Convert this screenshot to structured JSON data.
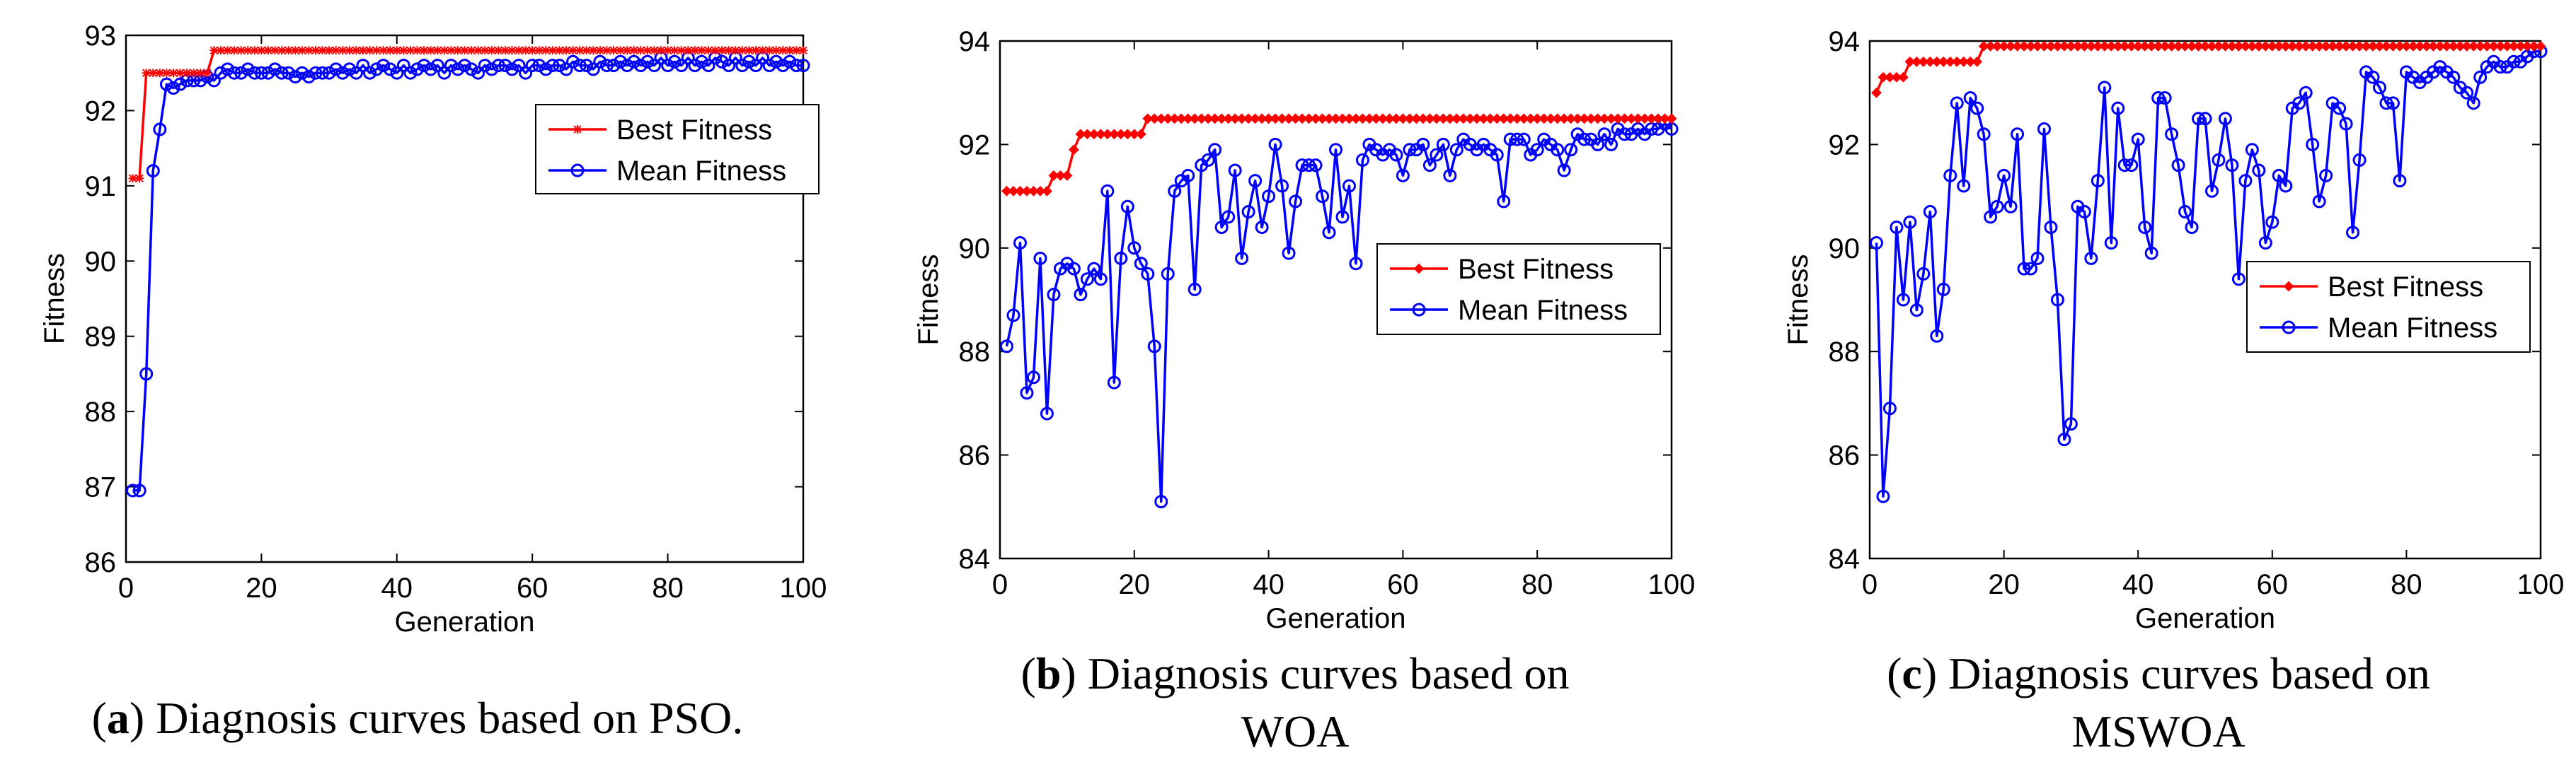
{
  "figure": {
    "panels": [
      {
        "letter": "a",
        "caption_line1": "Diagnosis curves based on PSO.",
        "caption_line2": ""
      },
      {
        "letter": "b",
        "caption_line1": "Diagnosis curves based on",
        "caption_line2": "WOA"
      },
      {
        "letter": "c",
        "caption_line1": "Diagnosis curves based on",
        "caption_line2": "MSWOA"
      }
    ]
  },
  "colors": {
    "best": "#ff0000",
    "mean": "#0000ff",
    "axis": "#000000"
  },
  "chart_data": [
    {
      "type": "line",
      "panel": "a",
      "title": "",
      "xlabel": "Generation",
      "ylabel": "Fitness",
      "xlim": [
        0,
        100
      ],
      "ylim": [
        86,
        93
      ],
      "xticks": [
        0,
        20,
        40,
        60,
        80,
        100
      ],
      "yticks": [
        86,
        87,
        88,
        89,
        90,
        91,
        92,
        93
      ],
      "legend_position": "top-right",
      "series": [
        {
          "name": "Best Fitness",
          "marker": "asterisk",
          "values": [
            91.1,
            91.1,
            92.5,
            92.5,
            92.5,
            92.5,
            92.5,
            92.5,
            92.5,
            92.5,
            92.5,
            92.5,
            92.8,
            92.8,
            92.8,
            92.8,
            92.8,
            92.8,
            92.8,
            92.8,
            92.8,
            92.8,
            92.8,
            92.8,
            92.8,
            92.8,
            92.8,
            92.8,
            92.8,
            92.8,
            92.8,
            92.8,
            92.8,
            92.8,
            92.8,
            92.8,
            92.8,
            92.8,
            92.8,
            92.8,
            92.8,
            92.8,
            92.8,
            92.8,
            92.8,
            92.8,
            92.8,
            92.8,
            92.8,
            92.8,
            92.8,
            92.8,
            92.8,
            92.8,
            92.8,
            92.8,
            92.8,
            92.8,
            92.8,
            92.8,
            92.8,
            92.8,
            92.8,
            92.8,
            92.8,
            92.8,
            92.8,
            92.8,
            92.8,
            92.8,
            92.8,
            92.8,
            92.8,
            92.8,
            92.8,
            92.8,
            92.8,
            92.8,
            92.8,
            92.8,
            92.8,
            92.8,
            92.8,
            92.8,
            92.8,
            92.8,
            92.8,
            92.8,
            92.8,
            92.8,
            92.8,
            92.8,
            92.8,
            92.8,
            92.8,
            92.8,
            92.8,
            92.8,
            92.8,
            92.8
          ]
        },
        {
          "name": "Mean Fitness",
          "marker": "circle",
          "values": [
            86.95,
            86.95,
            88.5,
            91.2,
            91.75,
            92.35,
            92.3,
            92.35,
            92.4,
            92.4,
            92.4,
            92.45,
            92.4,
            92.5,
            92.55,
            92.5,
            92.5,
            92.55,
            92.5,
            92.5,
            92.5,
            92.55,
            92.5,
            92.5,
            92.45,
            92.5,
            92.45,
            92.5,
            92.5,
            92.5,
            92.55,
            92.5,
            92.55,
            92.5,
            92.6,
            92.5,
            92.55,
            92.6,
            92.55,
            92.5,
            92.6,
            92.5,
            92.55,
            92.6,
            92.55,
            92.6,
            92.5,
            92.6,
            92.55,
            92.6,
            92.55,
            92.5,
            92.6,
            92.55,
            92.6,
            92.6,
            92.55,
            92.6,
            92.5,
            92.6,
            92.6,
            92.55,
            92.6,
            92.6,
            92.55,
            92.65,
            92.6,
            92.6,
            92.55,
            92.65,
            92.6,
            92.6,
            92.65,
            92.6,
            92.65,
            92.6,
            92.65,
            92.6,
            92.7,
            92.6,
            92.65,
            92.6,
            92.7,
            92.6,
            92.65,
            92.6,
            92.7,
            92.65,
            92.6,
            92.7,
            92.6,
            92.65,
            92.6,
            92.7,
            92.6,
            92.65,
            92.6,
            92.65,
            92.6,
            92.6
          ]
        }
      ]
    },
    {
      "type": "line",
      "panel": "b",
      "title": "",
      "xlabel": "Generation",
      "ylabel": "Fitness",
      "xlim": [
        0,
        100
      ],
      "ylim": [
        84,
        94
      ],
      "xticks": [
        0,
        20,
        40,
        60,
        80,
        100
      ],
      "yticks": [
        84,
        86,
        88,
        90,
        92,
        94
      ],
      "legend_position": "center-right",
      "series": [
        {
          "name": "Best Fitness",
          "marker": "diamond",
          "values": [
            91.1,
            91.1,
            91.1,
            91.1,
            91.1,
            91.1,
            91.1,
            91.4,
            91.4,
            91.4,
            91.9,
            92.2,
            92.2,
            92.2,
            92.2,
            92.2,
            92.2,
            92.2,
            92.2,
            92.2,
            92.2,
            92.5,
            92.5,
            92.5,
            92.5,
            92.5,
            92.5,
            92.5,
            92.5,
            92.5,
            92.5,
            92.5,
            92.5,
            92.5,
            92.5,
            92.5,
            92.5,
            92.5,
            92.5,
            92.5,
            92.5,
            92.5,
            92.5,
            92.5,
            92.5,
            92.5,
            92.5,
            92.5,
            92.5,
            92.5,
            92.5,
            92.5,
            92.5,
            92.5,
            92.5,
            92.5,
            92.5,
            92.5,
            92.5,
            92.5,
            92.5,
            92.5,
            92.5,
            92.5,
            92.5,
            92.5,
            92.5,
            92.5,
            92.5,
            92.5,
            92.5,
            92.5,
            92.5,
            92.5,
            92.5,
            92.5,
            92.5,
            92.5,
            92.5,
            92.5,
            92.5,
            92.5,
            92.5,
            92.5,
            92.5,
            92.5,
            92.5,
            92.5,
            92.5,
            92.5,
            92.5,
            92.5,
            92.5,
            92.5,
            92.5,
            92.5,
            92.5,
            92.5,
            92.5,
            92.5
          ]
        },
        {
          "name": "Mean Fitness",
          "marker": "circle",
          "values": [
            88.1,
            88.7,
            90.1,
            87.2,
            87.5,
            89.8,
            86.8,
            89.1,
            89.6,
            89.7,
            89.6,
            89.1,
            89.4,
            89.6,
            89.4,
            91.1,
            87.4,
            89.8,
            90.8,
            90.0,
            89.7,
            89.5,
            88.1,
            85.1,
            89.5,
            91.1,
            91.3,
            91.4,
            89.2,
            91.6,
            91.7,
            91.9,
            90.4,
            90.6,
            91.5,
            89.8,
            90.7,
            91.3,
            90.4,
            91.0,
            92.0,
            91.2,
            89.9,
            90.9,
            91.6,
            91.6,
            91.6,
            91.0,
            90.3,
            91.9,
            90.6,
            91.2,
            89.7,
            91.7,
            92.0,
            91.9,
            91.8,
            91.9,
            91.8,
            91.4,
            91.9,
            91.9,
            92.0,
            91.6,
            91.8,
            92.0,
            91.4,
            91.9,
            92.1,
            92.0,
            91.9,
            92.0,
            91.9,
            91.8,
            90.9,
            92.1,
            92.1,
            92.1,
            91.8,
            91.9,
            92.1,
            92.0,
            91.9,
            91.5,
            91.9,
            92.2,
            92.1,
            92.1,
            92.0,
            92.2,
            92.0,
            92.3,
            92.2,
            92.2,
            92.3,
            92.2,
            92.3,
            92.3,
            92.4,
            92.3
          ]
        }
      ]
    },
    {
      "type": "line",
      "panel": "c",
      "title": "",
      "xlabel": "Generation",
      "ylabel": "Fitness",
      "xlim": [
        0,
        100
      ],
      "ylim": [
        84,
        94
      ],
      "xticks": [
        0,
        20,
        40,
        60,
        80,
        100
      ],
      "yticks": [
        84,
        86,
        88,
        90,
        92,
        94
      ],
      "legend_position": "center-right",
      "series": [
        {
          "name": "Best Fitness",
          "marker": "diamond",
          "values": [
            93.0,
            93.3,
            93.3,
            93.3,
            93.3,
            93.6,
            93.6,
            93.6,
            93.6,
            93.6,
            93.6,
            93.6,
            93.6,
            93.6,
            93.6,
            93.6,
            93.9,
            93.9,
            93.9,
            93.9,
            93.9,
            93.9,
            93.9,
            93.9,
            93.9,
            93.9,
            93.9,
            93.9,
            93.9,
            93.9,
            93.9,
            93.9,
            93.9,
            93.9,
            93.9,
            93.9,
            93.9,
            93.9,
            93.9,
            93.9,
            93.9,
            93.9,
            93.9,
            93.9,
            93.9,
            93.9,
            93.9,
            93.9,
            93.9,
            93.9,
            93.9,
            93.9,
            93.9,
            93.9,
            93.9,
            93.9,
            93.9,
            93.9,
            93.9,
            93.9,
            93.9,
            93.9,
            93.9,
            93.9,
            93.9,
            93.9,
            93.9,
            93.9,
            93.9,
            93.9,
            93.9,
            93.9,
            93.9,
            93.9,
            93.9,
            93.9,
            93.9,
            93.9,
            93.9,
            93.9,
            93.9,
            93.9,
            93.9,
            93.9,
            93.9,
            93.9,
            93.9,
            93.9,
            93.9,
            93.9,
            93.9,
            93.9,
            93.9,
            93.9,
            93.9,
            93.9,
            93.9,
            93.9,
            93.9,
            93.9
          ]
        },
        {
          "name": "Mean Fitness",
          "marker": "circle",
          "values": [
            90.1,
            85.2,
            86.9,
            90.4,
            89.0,
            90.5,
            88.8,
            89.5,
            90.7,
            88.3,
            89.2,
            91.4,
            92.8,
            91.2,
            92.9,
            92.7,
            92.2,
            90.6,
            90.8,
            91.4,
            90.8,
            92.2,
            89.6,
            89.6,
            89.8,
            92.3,
            90.4,
            89.0,
            86.3,
            86.6,
            90.8,
            90.7,
            89.8,
            91.3,
            93.1,
            90.1,
            92.7,
            91.6,
            91.6,
            92.1,
            90.4,
            89.9,
            92.9,
            92.9,
            92.2,
            91.6,
            90.7,
            90.4,
            92.5,
            92.5,
            91.1,
            91.7,
            92.5,
            91.6,
            89.4,
            91.3,
            91.9,
            91.5,
            90.1,
            90.5,
            91.4,
            91.2,
            92.7,
            92.8,
            93.0,
            92.0,
            90.9,
            91.4,
            92.8,
            92.7,
            92.4,
            90.3,
            91.7,
            93.4,
            93.3,
            93.1,
            92.8,
            92.8,
            91.3,
            93.4,
            93.3,
            93.2,
            93.3,
            93.4,
            93.5,
            93.4,
            93.3,
            93.1,
            93.0,
            92.8,
            93.3,
            93.5,
            93.6,
            93.5,
            93.5,
            93.6,
            93.6,
            93.7,
            93.8,
            93.8
          ]
        }
      ]
    }
  ]
}
